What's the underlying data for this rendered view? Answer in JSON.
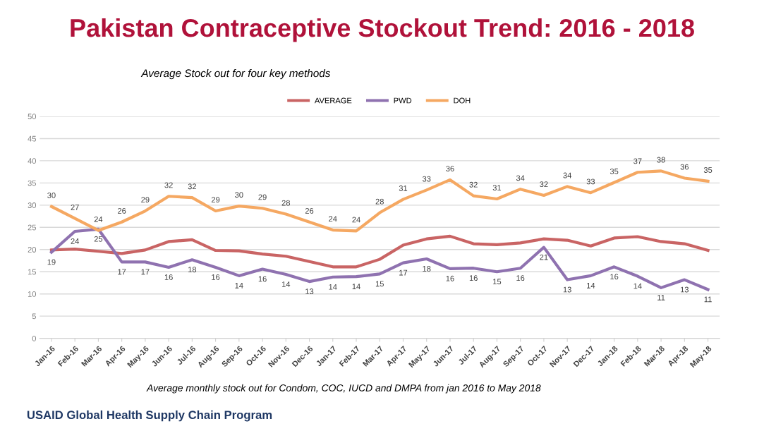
{
  "chart_data": {
    "type": "line",
    "title": "Pakistan Contraceptive Stockout Trend: 2016 - 2018",
    "subtitle": "Average Stock out for four key methods",
    "categories": [
      "Jan-16",
      "Feb-16",
      "Mar-16",
      "Apr-16",
      "May-16",
      "Jun-16",
      "Jul-16",
      "Aug-16",
      "Sep-16",
      "Oct-16",
      "Nov-16",
      "Dec-16",
      "Jan-17",
      "Feb-17",
      "Mar-17",
      "Apr-17",
      "May-17",
      "Jun-17",
      "Jul-17",
      "Aug-17",
      "Sep-17",
      "Oct-17",
      "Nov-17",
      "Dec-17",
      "Jan-18",
      "Feb-18",
      "Mar-18",
      "Apr-18",
      "May-18"
    ],
    "series": [
      {
        "name": "AVERAGE",
        "color": "#c96464",
        "values": [
          19.9,
          20.1,
          19.6,
          19.1,
          19.9,
          21.8,
          22.2,
          19.8,
          19.7,
          19.0,
          18.5,
          17.3,
          16.1,
          16.1,
          17.8,
          21.0,
          22.4,
          23.0,
          21.3,
          21.1,
          21.5,
          22.4,
          22.1,
          20.8,
          22.6,
          22.9,
          21.8,
          21.3,
          19.8
        ]
      },
      {
        "name": "PWD",
        "color": "#8f72b0",
        "values": [
          19.4,
          24.1,
          24.6,
          17.2,
          17.2,
          16.0,
          17.7,
          16.0,
          14.1,
          15.6,
          14.4,
          12.8,
          13.8,
          13.9,
          14.5,
          17.0,
          17.9,
          15.7,
          15.8,
          15.0,
          15.8,
          20.5,
          13.2,
          14.1,
          16.1,
          14.0,
          11.4,
          13.2,
          11.0
        ],
        "value_labels": [
          "19",
          "24",
          "25",
          "17",
          "17",
          "16",
          "18",
          "16",
          "14",
          "16",
          "14",
          "13",
          "14",
          "14",
          "15",
          "17",
          "18",
          "16",
          "16",
          "15",
          "16",
          "21",
          "13",
          "14",
          "16",
          "14",
          "11",
          "13",
          "11"
        ]
      },
      {
        "name": "DOH",
        "color": "#f5a862",
        "values": [
          29.7,
          27.0,
          24.3,
          26.2,
          28.7,
          32.0,
          31.7,
          28.7,
          29.8,
          29.3,
          28.0,
          26.2,
          24.4,
          24.2,
          28.3,
          31.3,
          33.4,
          35.7,
          32.1,
          31.4,
          33.6,
          32.2,
          34.2,
          32.8,
          35.1,
          37.4,
          37.7,
          36.1,
          35.4
        ],
        "value_labels": [
          "30",
          "27",
          "24",
          "26",
          "29",
          "32",
          "32",
          "29",
          "30",
          "29",
          "28",
          "26",
          "24",
          "24",
          "28",
          "31",
          "33",
          "36",
          "32",
          "31",
          "34",
          "32",
          "34",
          "33",
          "35",
          "37",
          "38",
          "36",
          "35"
        ]
      }
    ],
    "ylim": [
      0,
      50
    ],
    "yticks": [
      0,
      5,
      10,
      15,
      20,
      25,
      30,
      35,
      40,
      45,
      50
    ],
    "grid": "y",
    "legend": "top",
    "marker": "none",
    "line_style": "solid",
    "annotations": [
      "Average monthly stock out for Condom, COC, IUCD and DMPA from jan 2016 to May 2018",
      "USAID Global Health Supply Chain Program"
    ]
  }
}
